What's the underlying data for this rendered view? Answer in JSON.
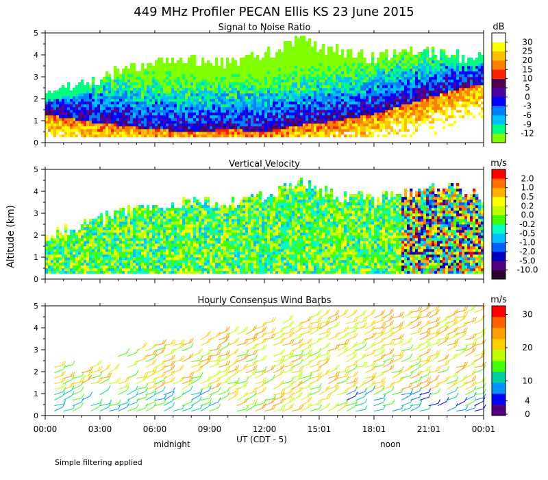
{
  "title": "449 MHz Profiler PECAN Ellis KS 23 June 2015",
  "ylabel": "Altitude (km)",
  "footnote": "Simple filtering applied",
  "x_axis": {
    "label": "UT  (CDT - 5)",
    "ticks": [
      "00:00",
      "03:00",
      "06:00",
      "09:00",
      "12:00",
      "15:01",
      "18:01",
      "21:01",
      "00:01"
    ],
    "tick_hours": [
      0,
      3,
      6,
      9,
      12,
      15,
      18,
      21,
      24
    ],
    "annotations": [
      {
        "text": "midnight",
        "hour": 7.5
      },
      {
        "text": "noon",
        "hour": 19.0
      }
    ]
  },
  "chart_data": [
    {
      "type": "heatmap",
      "title": "Signal to Noise Ratio",
      "xlim": [
        0,
        24
      ],
      "ylim": [
        0,
        5
      ],
      "yticks": [
        "0",
        "1",
        "2",
        "3",
        "4",
        "5"
      ],
      "colorbar": {
        "unit": "dB",
        "labels": [
          "-12",
          "-9",
          "-6",
          "-3",
          "0",
          "5",
          "10",
          "15",
          "20",
          "25",
          "30"
        ],
        "colors": [
          "#80ff00",
          "#00ff80",
          "#00c0ff",
          "#0080ff",
          "#0000ff",
          "#5000a0",
          "#500050",
          "#ff2000",
          "#ff8000",
          "#ffc000",
          "#ffff00",
          "#ffffff"
        ]
      },
      "data_top_km": [
        [
          0,
          2.2
        ],
        [
          2,
          2.6
        ],
        [
          4,
          3.3
        ],
        [
          6,
          3.6
        ],
        [
          8,
          3.8
        ],
        [
          10,
          3.6
        ],
        [
          12,
          4.0
        ],
        [
          14,
          4.6
        ],
        [
          16,
          4.2
        ],
        [
          18,
          3.8
        ],
        [
          20,
          4.2
        ],
        [
          22,
          4.0
        ],
        [
          24,
          3.8
        ]
      ],
      "boundary_layer_km": [
        [
          0,
          1.3
        ],
        [
          2,
          1.0
        ],
        [
          4,
          0.8
        ],
        [
          6,
          0.6
        ],
        [
          8,
          0.5
        ],
        [
          10,
          0.6
        ],
        [
          12,
          0.5
        ],
        [
          14,
          0.8
        ],
        [
          16,
          1.0
        ],
        [
          18,
          1.3
        ],
        [
          20,
          1.8
        ],
        [
          22,
          2.3
        ],
        [
          24,
          2.7
        ]
      ]
    },
    {
      "type": "heatmap",
      "title": "Vertical Velocity",
      "xlim": [
        0,
        24
      ],
      "ylim": [
        0,
        5
      ],
      "yticks": [
        "0",
        "1",
        "2",
        "3",
        "4",
        "5"
      ],
      "colorbar": {
        "unit": "m/s",
        "labels": [
          "-10.0",
          "-5.0",
          "-2.0",
          "-1.0",
          "-0.5",
          "-0.2",
          "0.0",
          "0.2",
          "0.5",
          "1.0",
          "2.0"
        ],
        "colors": [
          "#300030",
          "#500080",
          "#0000c0",
          "#0060ff",
          "#00c0ff",
          "#00ffc0",
          "#40ff00",
          "#c0ff00",
          "#ffff00",
          "#ffb000",
          "#ff7000",
          "#ff0000"
        ]
      },
      "data_top_km": [
        [
          0,
          2.0
        ],
        [
          2,
          2.5
        ],
        [
          4,
          3.0
        ],
        [
          6,
          3.3
        ],
        [
          8,
          3.5
        ],
        [
          10,
          3.5
        ],
        [
          12,
          3.8
        ],
        [
          14,
          4.4
        ],
        [
          16,
          3.8
        ],
        [
          18,
          3.6
        ],
        [
          20,
          4.0
        ],
        [
          22,
          4.2
        ],
        [
          24,
          3.8
        ]
      ],
      "convective_period_hours": [
        19.5,
        24
      ]
    },
    {
      "type": "wind_barbs",
      "title": "Hourly Consensus Wind Barbs",
      "xlim": [
        0,
        24
      ],
      "ylim": [
        0,
        5
      ],
      "yticks": [
        "0",
        "1",
        "2",
        "3",
        "4",
        "5"
      ],
      "colorbar": {
        "unit": "m/s",
        "labels": [
          "0",
          "4",
          "10",
          "20",
          "30"
        ],
        "label_values": [
          0,
          4,
          10,
          20,
          30
        ],
        "colors": [
          "#500080",
          "#0000ff",
          "#0090ff",
          "#00d0a0",
          "#40ff00",
          "#c0ff00",
          "#ffd000",
          "#ffa000",
          "#ff6000",
          "#ff0000"
        ]
      },
      "profile_top_km": [
        [
          0,
          2.5
        ],
        [
          2,
          2.0
        ],
        [
          4,
          2.8
        ],
        [
          6,
          3.2
        ],
        [
          8,
          3.5
        ],
        [
          10,
          3.8
        ],
        [
          12,
          4.2
        ],
        [
          14,
          4.6
        ],
        [
          16,
          4.6
        ],
        [
          18,
          4.5
        ],
        [
          20,
          4.7
        ],
        [
          22,
          4.8
        ],
        [
          23.5,
          4.8
        ]
      ],
      "speed_ms": {
        "low_levels_night": 8,
        "mid_levels": 18,
        "upper_levels": 20,
        "afternoon_low_levels": 3
      }
    }
  ]
}
